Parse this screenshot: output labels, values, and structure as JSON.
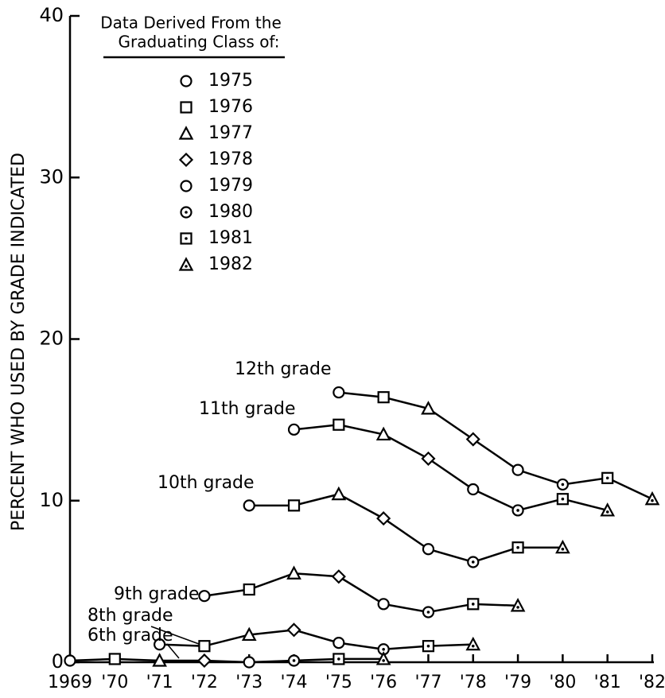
{
  "chart_data": {
    "type": "line",
    "y_label": "PERCENT WHO USED BY GRADE INDICATED",
    "legend_title": [
      "Data Derived From the",
      "Graduating Class of:"
    ],
    "legend": [
      {
        "label": "1975",
        "marker": "circle"
      },
      {
        "label": "1976",
        "marker": "square"
      },
      {
        "label": "1977",
        "marker": "triangle"
      },
      {
        "label": "1978",
        "marker": "diamond"
      },
      {
        "label": "1979",
        "marker": "circle"
      },
      {
        "label": "1980",
        "marker": "dotted-circle"
      },
      {
        "label": "1981",
        "marker": "dotted-square"
      },
      {
        "label": "1982",
        "marker": "dotted-triangle"
      }
    ],
    "color": "#000000",
    "grid": false,
    "xlim": [
      1969,
      1982
    ],
    "xticks": [
      1969,
      {
        "value": 1970,
        "label": "'70"
      },
      {
        "value": 1971,
        "label": "'71"
      },
      {
        "value": 1972,
        "label": "'72"
      },
      {
        "value": 1973,
        "label": "'73"
      },
      {
        "value": 1974,
        "label": "'74"
      },
      {
        "value": 1975,
        "label": "'75"
      },
      {
        "value": 1976,
        "label": "'76"
      },
      {
        "value": 1977,
        "label": "'77"
      },
      {
        "value": 1978,
        "label": "'78"
      },
      {
        "value": 1979,
        "label": "'79"
      },
      {
        "value": 1980,
        "label": "'80"
      },
      {
        "value": 1981,
        "label": "'81"
      },
      {
        "value": 1982,
        "label": "'82"
      }
    ],
    "ylim": [
      0,
      40
    ],
    "yticks": [
      0,
      10,
      20,
      30,
      40
    ],
    "series": [
      {
        "name": "12th grade",
        "x": [
          1975,
          1976,
          1977,
          1978,
          1979,
          1980,
          1981,
          1982
        ],
        "values": [
          16.7,
          16.4,
          15.7,
          13.8,
          11.9,
          11.0,
          11.4,
          10.1
        ]
      },
      {
        "name": "11th grade",
        "x": [
          1974,
          1975,
          1976,
          1977,
          1978,
          1979,
          1980,
          1981
        ],
        "values": [
          14.4,
          14.7,
          14.1,
          12.6,
          10.7,
          9.4,
          10.1,
          9.4
        ]
      },
      {
        "name": "10th grade",
        "x": [
          1973,
          1974,
          1975,
          1976,
          1977,
          1978,
          1979,
          1980
        ],
        "values": [
          9.7,
          9.7,
          10.4,
          8.9,
          7.0,
          6.2,
          7.1,
          7.1
        ]
      },
      {
        "name": "9th grade",
        "x": [
          1972,
          1973,
          1974,
          1975,
          1976,
          1977,
          1978,
          1979
        ],
        "values": [
          4.1,
          4.5,
          5.5,
          5.3,
          3.6,
          3.1,
          3.6,
          3.5
        ]
      },
      {
        "name": "8th grade",
        "x": [
          1971,
          1972,
          1973,
          1974,
          1975,
          1976,
          1977,
          1978
        ],
        "values": [
          1.1,
          1.0,
          1.7,
          2.0,
          1.2,
          0.8,
          1.0,
          1.1
        ]
      },
      {
        "name": "6th grade",
        "x": [
          1969,
          1970,
          1971,
          1972,
          1973,
          1974,
          1975,
          1976
        ],
        "values": [
          0.1,
          0.2,
          0.1,
          0.1,
          0.0,
          0.1,
          0.2,
          0.2
        ]
      }
    ]
  }
}
